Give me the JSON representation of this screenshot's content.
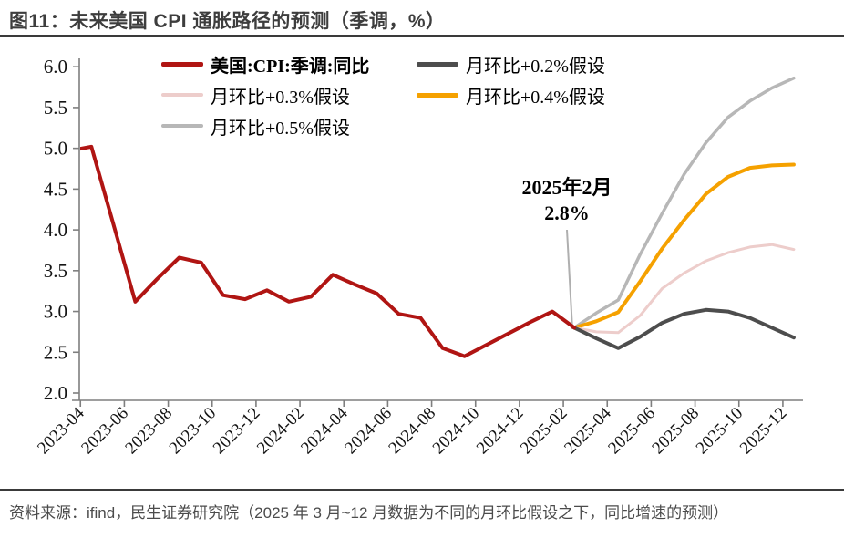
{
  "header": {
    "title": "图11：未来美国 CPI 通胀路径的预测（季调，%）"
  },
  "annotation": {
    "line1": "2025年2月",
    "line2": "2.8%",
    "points_to": {
      "month": "2025-02",
      "value": 2.8
    }
  },
  "footer": {
    "source": "资料来源：ifind，民生证券研究院（2025 年 3 月~12 月数据为不同的月环比假设之下，同比增速的预测）"
  },
  "colors": {
    "actual_red": "#B01513",
    "assume_02": "#4D4D4D",
    "assume_03": "#EDCDCB",
    "assume_04": "#F5A100",
    "assume_05": "#B7B7B7",
    "axis": "#7F7F7F",
    "rule": "#3A3A3A",
    "leader_line": "#AFAFAF"
  },
  "chart_data": {
    "type": "line",
    "title": "图11：未来美国 CPI 通胀路径的预测（季调，%）",
    "ylabel": "",
    "xlabel": "",
    "ylim": [
      2.0,
      6.0
    ],
    "grid": false,
    "legend_position": "top-center",
    "y_tick_labels": [
      "6.0",
      "5.5",
      "5.0",
      "4.5",
      "4.0",
      "3.5",
      "3.0",
      "2.5",
      "2.0"
    ],
    "x_tick_labels": [
      "2023-04",
      "2023-06",
      "2023-08",
      "2023-10",
      "2023-12",
      "2024-02",
      "2024-04",
      "2024-06",
      "2024-08",
      "2024-10",
      "2024-12",
      "2025-02",
      "2025-04",
      "2025-06",
      "2025-08",
      "2025-10",
      "2025-12"
    ],
    "x": [
      "2023-03",
      "2023-04",
      "2023-05",
      "2023-06",
      "2023-07",
      "2023-08",
      "2023-09",
      "2023-10",
      "2023-11",
      "2023-12",
      "2024-01",
      "2024-02",
      "2024-03",
      "2024-04",
      "2024-05",
      "2024-06",
      "2024-07",
      "2024-08",
      "2024-09",
      "2024-10",
      "2024-11",
      "2024-12",
      "2025-01",
      "2025-02",
      "2025-03",
      "2025-04",
      "2025-05",
      "2025-06",
      "2025-07",
      "2025-08",
      "2025-09",
      "2025-10",
      "2025-11",
      "2025-12"
    ],
    "series": [
      {
        "name": "美国:CPI:季调:同比",
        "color": "#B01513",
        "line_width": 4,
        "legend_bold": true,
        "start_index": 0,
        "values": [
          4.97,
          5.02,
          4.07,
          3.12,
          3.4,
          3.66,
          3.6,
          3.2,
          3.15,
          3.26,
          3.12,
          3.18,
          3.45,
          3.33,
          3.22,
          2.97,
          2.92,
          2.55,
          2.45,
          2.59,
          2.73,
          2.87,
          3.0,
          2.8
        ]
      },
      {
        "name": "月环比+0.2%假设",
        "color": "#4D4D4D",
        "line_width": 4,
        "legend_bold": false,
        "start_index": 23,
        "values": [
          2.8,
          2.67,
          2.55,
          2.69,
          2.86,
          2.97,
          3.02,
          3.0,
          2.92,
          2.8,
          2.68
        ]
      },
      {
        "name": "月环比+0.3%假设",
        "color": "#EDCDCB",
        "line_width": 3,
        "legend_bold": false,
        "start_index": 23,
        "values": [
          2.8,
          2.75,
          2.74,
          2.95,
          3.28,
          3.47,
          3.62,
          3.72,
          3.79,
          3.82,
          3.76
        ]
      },
      {
        "name": "月环比+0.4%假设",
        "color": "#F5A100",
        "line_width": 4,
        "legend_bold": false,
        "start_index": 23,
        "values": [
          2.8,
          2.88,
          2.99,
          3.37,
          3.77,
          4.12,
          4.44,
          4.65,
          4.76,
          4.79,
          4.8
        ]
      },
      {
        "name": "月环比+0.5%假设",
        "color": "#B7B7B7",
        "line_width": 3.5,
        "legend_bold": false,
        "start_index": 23,
        "values": [
          2.8,
          2.98,
          3.14,
          3.7,
          4.2,
          4.68,
          5.07,
          5.38,
          5.58,
          5.74,
          5.86
        ]
      }
    ]
  }
}
